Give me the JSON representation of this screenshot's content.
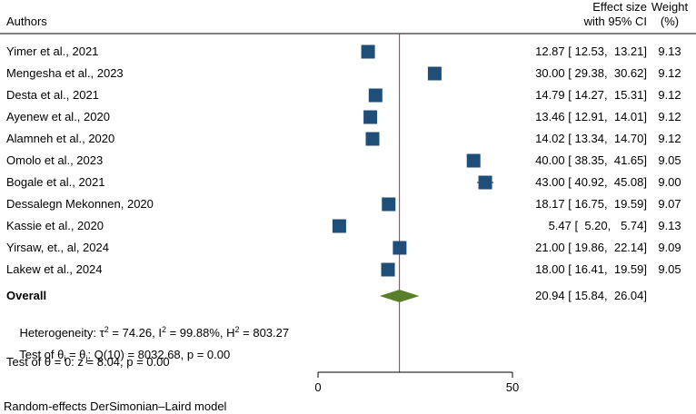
{
  "header": {
    "authors": "Authors",
    "effect_line1": "Effect size",
    "effect_line2": "with 95% CI",
    "weight_line1": "Weight",
    "weight_line2": "(%)"
  },
  "colors": {
    "marker": "#1f4e79",
    "diamond": "#5a7f2b",
    "reference_line": "#c2185b"
  },
  "chart_data": {
    "type": "forest",
    "model": "Random-effects DerSimonian–Laird model",
    "xlim": [
      0,
      50
    ],
    "xticks": [
      "0",
      "50"
    ],
    "studies": [
      {
        "author": "Yimer et al., 2021",
        "es": 12.87,
        "lo": 12.53,
        "hi": 13.21,
        "es_text": "12.87 [ 12.53,  13.21]",
        "weight": 9.13,
        "weight_text": "9.13"
      },
      {
        "author": "Mengesha et al., 2023",
        "es": 30.0,
        "lo": 29.38,
        "hi": 30.62,
        "es_text": "30.00 [ 29.38,  30.62]",
        "weight": 9.12,
        "weight_text": "9.12"
      },
      {
        "author": "Desta et al., 2021",
        "es": 14.79,
        "lo": 14.27,
        "hi": 15.31,
        "es_text": "14.79 [ 14.27,  15.31]",
        "weight": 9.12,
        "weight_text": "9.12"
      },
      {
        "author": "Ayenew et al., 2020",
        "es": 13.46,
        "lo": 12.91,
        "hi": 14.01,
        "es_text": "13.46 [ 12.91,  14.01]",
        "weight": 9.12,
        "weight_text": "9.12"
      },
      {
        "author": "Alamneh et al., 2020",
        "es": 14.02,
        "lo": 13.34,
        "hi": 14.7,
        "es_text": "14.02 [ 13.34,  14.70]",
        "weight": 9.12,
        "weight_text": "9.12"
      },
      {
        "author": "Omolo et al., 2023",
        "es": 40.0,
        "lo": 38.35,
        "hi": 41.65,
        "es_text": "40.00 [ 38.35,  41.65]",
        "weight": 9.05,
        "weight_text": "9.05"
      },
      {
        "author": "Bogale et al., 2021",
        "es": 43.0,
        "lo": 40.92,
        "hi": 45.08,
        "es_text": "43.00 [ 40.92,  45.08]",
        "weight": 9.0,
        "weight_text": "9.00"
      },
      {
        "author": "Dessalegn Mekonnen, 2020",
        "es": 18.17,
        "lo": 16.75,
        "hi": 19.59,
        "es_text": "18.17 [ 16.75,  19.59]",
        "weight": 9.07,
        "weight_text": "9.07"
      },
      {
        "author": "Kassie et al., 2020",
        "es": 5.47,
        "lo": 5.2,
        "hi": 5.74,
        "es_text": " 5.47 [  5.20,   5.74]",
        "weight": 9.13,
        "weight_text": "9.13"
      },
      {
        "author": "Yirsaw, et., al, 2024",
        "es": 21.0,
        "lo": 19.86,
        "hi": 22.14,
        "es_text": "21.00 [ 19.86,  22.14]",
        "weight": 9.09,
        "weight_text": "9.09"
      },
      {
        "author": "Lakew et al., 2024",
        "es": 18.0,
        "lo": 16.41,
        "hi": 19.59,
        "es_text": "18.00 [ 16.41,  19.59]",
        "weight": 9.05,
        "weight_text": "9.05"
      }
    ],
    "overall": {
      "label": "Overall",
      "es": 20.94,
      "lo": 15.84,
      "hi": 26.04,
      "es_text": "20.94 [ 15.84,  26.04]"
    },
    "heterogeneity": {
      "prefix": "Heterogeneity: τ",
      "tau_sup": "2",
      "tau_val": " = 74.26, I",
      "i_sup": "2",
      "i_val": " = 99.88%, H",
      "h_sup": "2",
      "h_val": " = 803.27"
    },
    "test_homog": {
      "p1": "Test of θ",
      "s1": "i",
      "p2": " = θ",
      "s2": "j",
      "p3": ": Q(10) = 8032.68, p = 0.00"
    },
    "test_zero": "Test of θ = 0: z = 8.04, p = 0.00"
  }
}
